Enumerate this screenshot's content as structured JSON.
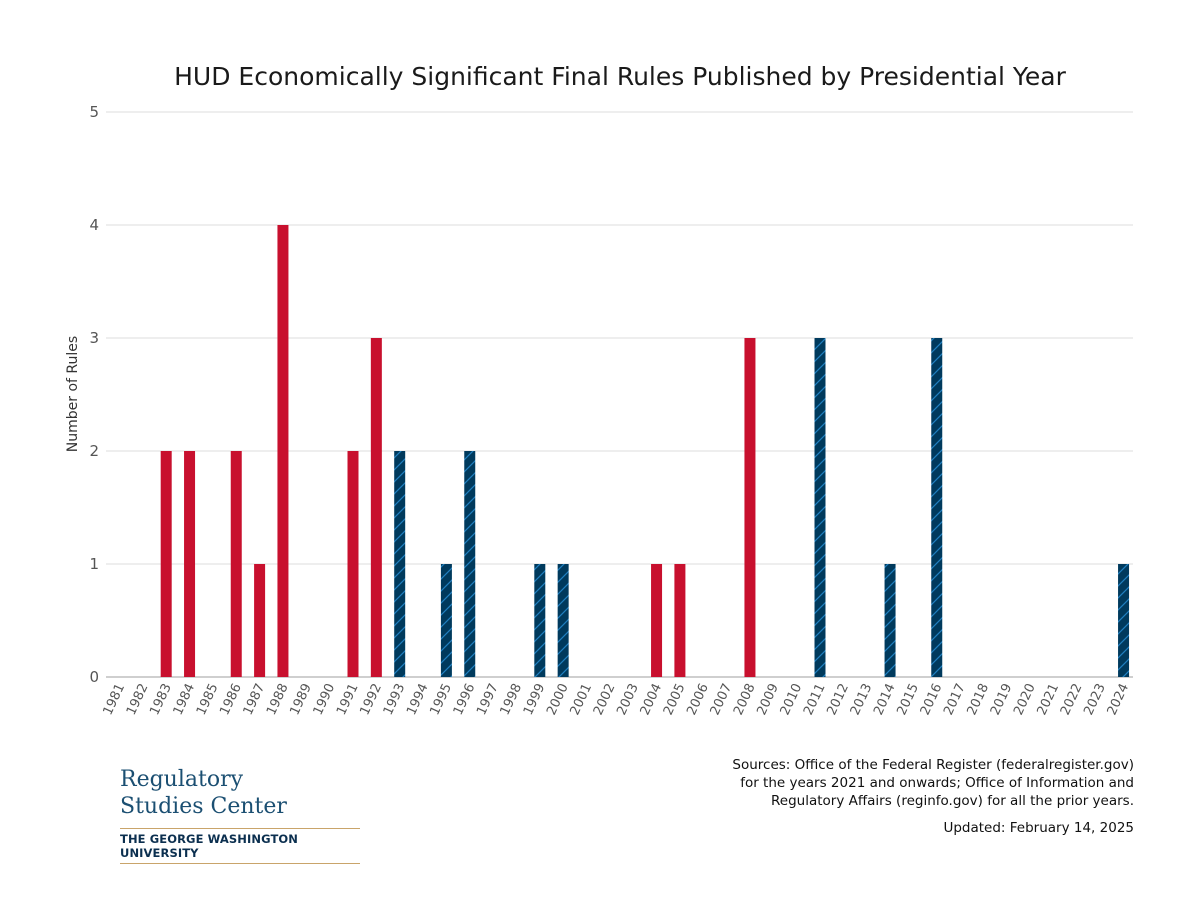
{
  "chart_data": {
    "type": "bar",
    "title": "HUD Economically Significant Final Rules Published by Presidential Year",
    "ylabel": "Number of Rules",
    "xlabel": "",
    "ylim": [
      0,
      5
    ],
    "yticks": [
      0,
      1,
      2,
      3,
      4,
      5
    ],
    "grid": true,
    "categories": [
      "1981",
      "1982",
      "1983",
      "1984",
      "1985",
      "1986",
      "1987",
      "1988",
      "1989",
      "1990",
      "1991",
      "1992",
      "1993",
      "1994",
      "1995",
      "1996",
      "1997",
      "1998",
      "1999",
      "2000",
      "2001",
      "2002",
      "2003",
      "2004",
      "2005",
      "2006",
      "2007",
      "2008",
      "2009",
      "2010",
      "2011",
      "2012",
      "2013",
      "2014",
      "2015",
      "2016",
      "2017",
      "2018",
      "2019",
      "2020",
      "2021",
      "2022",
      "2023",
      "2024"
    ],
    "values": [
      0,
      0,
      2,
      2,
      0,
      2,
      1,
      4,
      0,
      0,
      2,
      3,
      2,
      0,
      1,
      2,
      0,
      0,
      1,
      1,
      0,
      0,
      0,
      1,
      1,
      0,
      0,
      3,
      0,
      0,
      3,
      0,
      0,
      1,
      0,
      3,
      0,
      0,
      0,
      0,
      0,
      0,
      0,
      1
    ],
    "bar_colors": {
      "red": "#c8102e",
      "blue": "#003a5d",
      "blue_hatch": "#1f7fc0"
    },
    "bar_party": [
      "r",
      "r",
      "r",
      "r",
      "r",
      "r",
      "r",
      "r",
      "r",
      "r",
      "r",
      "r",
      "d",
      "d",
      "d",
      "d",
      "d",
      "d",
      "d",
      "d",
      "r",
      "r",
      "r",
      "r",
      "r",
      "r",
      "r",
      "r",
      "d",
      "d",
      "d",
      "d",
      "d",
      "d",
      "d",
      "d",
      "r",
      "r",
      "r",
      "r",
      "d",
      "d",
      "d",
      "d"
    ]
  },
  "footer": {
    "logo_line1": "Regulatory",
    "logo_line2": "Studies Center",
    "logo_university": "THE GEORGE WASHINGTON UNIVERSITY",
    "sources_line1": "Sources: Office of the Federal Register (federalregister.gov)",
    "sources_line2": "for the years 2021 and onwards; Office of Information and",
    "sources_line3": "Regulatory Affairs (reginfo.gov) for all the prior years.",
    "updated": "Updated: February 14, 2025"
  }
}
